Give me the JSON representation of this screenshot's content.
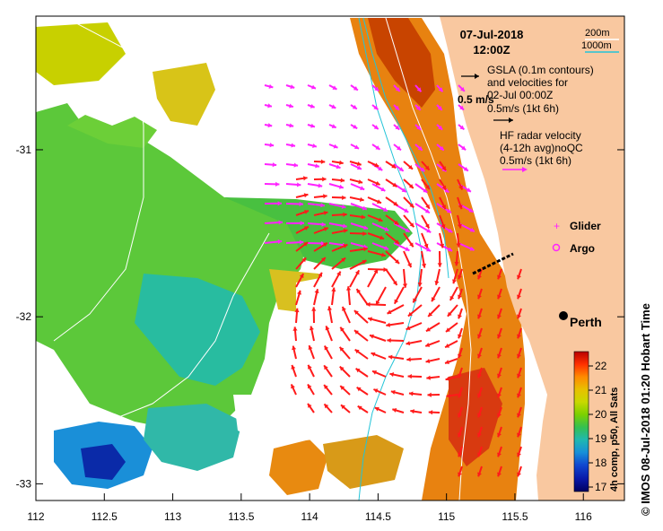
{
  "map": {
    "date": "07-Jul-2018",
    "time": "12:00Z",
    "contour_legend": [
      {
        "label": "200m",
        "color": "#ffffff"
      },
      {
        "label": "1000m",
        "color": "#22c4d8"
      }
    ],
    "gsla_text": [
      "GSLA (0.1m contours)",
      "and velocities for",
      "02-Jul 00:00Z"
    ],
    "gsla_scale_label": "0.5 m/s",
    "gsla_scale_sub": "0.5m/s (1kt 6h)",
    "hf_text": [
      "HF radar velocity",
      "(4-12h avg)noQC",
      "0.5m/s (1kt 6h)"
    ],
    "glider_label": "Glider",
    "argo_label": "Argo",
    "city_label": "Perth",
    "colorbar_label": "4h comp, p50, All Sats",
    "colorbar_ticks": [
      "22",
      "21",
      "20",
      "19",
      "18",
      "17"
    ],
    "colorbar_colors": [
      "#b80000",
      "#ff3000",
      "#ff8a00",
      "#e8c000",
      "#c8d800",
      "#7cd000",
      "#34c050",
      "#20b8b0",
      "#1890d8",
      "#1048d0",
      "#0818a8",
      "#000060"
    ],
    "footer": "© IMOS 08-Jul-2018 01:20 Hobart Time",
    "x_ticks": [
      "112",
      "112.5",
      "113",
      "113.5",
      "114",
      "114.5",
      "115",
      "115.5",
      "116"
    ],
    "y_ticks": [
      "-31",
      "-32",
      "-33"
    ],
    "land_color": "#f9c8a0",
    "radar_arrow_color": "#ff1a1a",
    "gsla_arrow_color": "#ff22ff",
    "xlim": [
      112,
      116.3
    ],
    "ylim": [
      -33.1,
      -30.2
    ]
  }
}
